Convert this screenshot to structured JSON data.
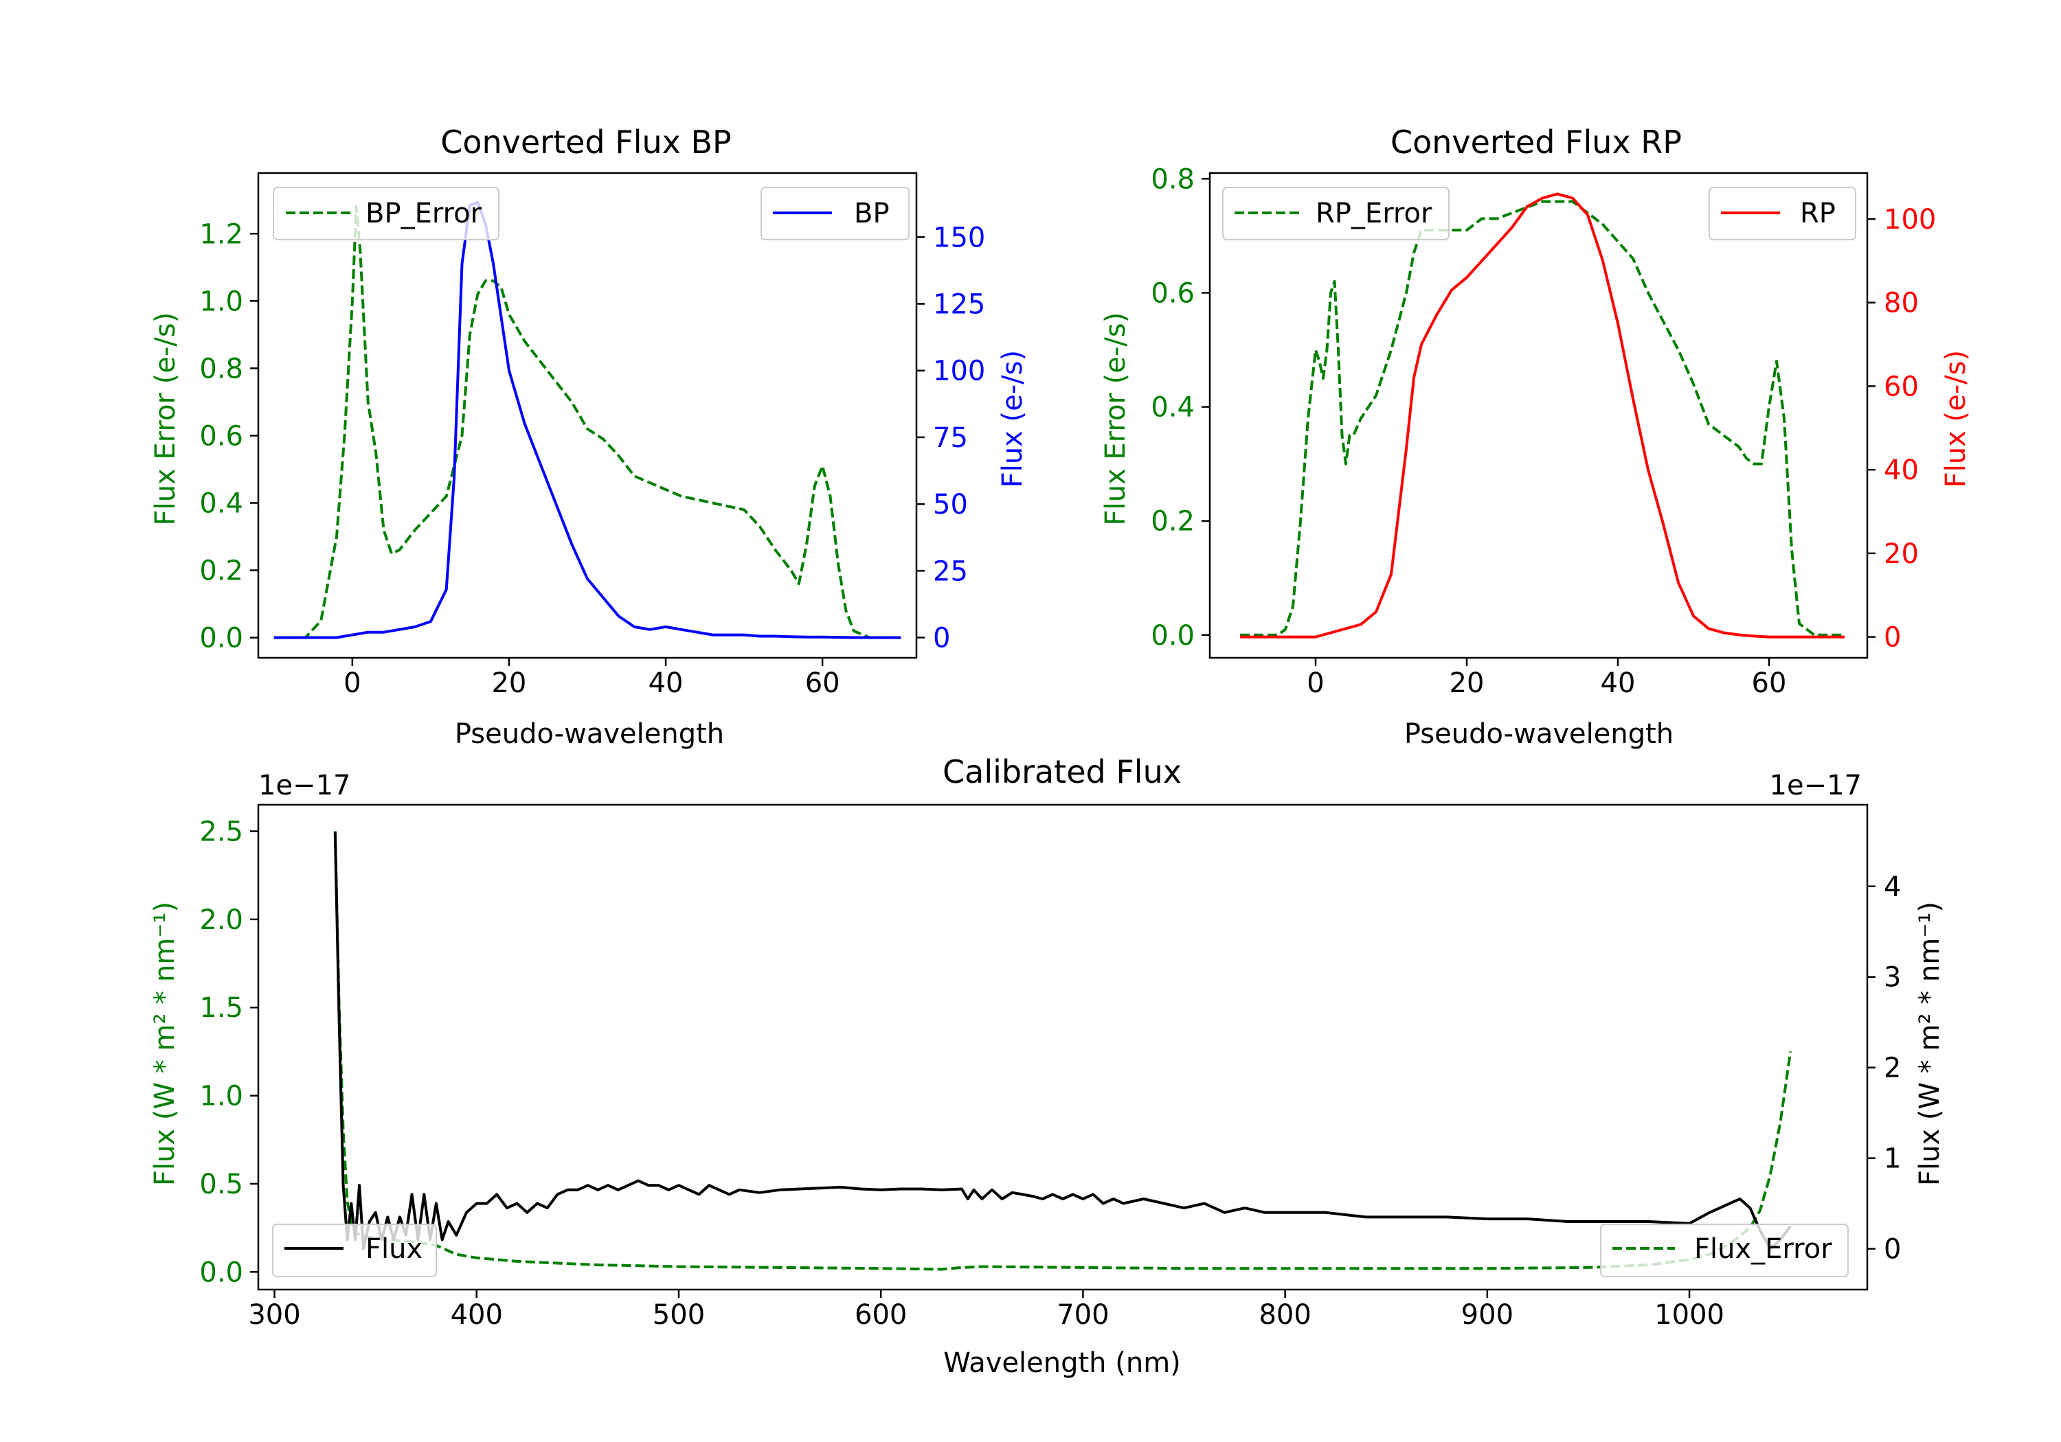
{
  "colors": {
    "green": "#008000",
    "blue": "#0000ff",
    "red": "#ff0000",
    "black": "#000000",
    "axis": "#000000"
  },
  "chart_data": [
    {
      "id": "bp",
      "type": "line",
      "title": "Converted Flux BP",
      "xlabel": "Pseudo-wavelength",
      "ylabel_left": "Flux Error (e-/s)",
      "ylabel_right": "Flux (e-/s)",
      "xlim": [
        -12,
        72
      ],
      "ylim_left": [
        -0.06,
        1.38
      ],
      "ylim_right": [
        -7.6,
        174
      ],
      "xticks": [
        0,
        20,
        40,
        60
      ],
      "yticks_left": [
        0.0,
        0.2,
        0.4,
        0.6,
        0.8,
        1.0,
        1.2
      ],
      "yticks_left_labels": [
        "0.0",
        "0.2",
        "0.4",
        "0.6",
        "0.8",
        "1.0",
        "1.2"
      ],
      "yticks_right": [
        0,
        25,
        50,
        75,
        100,
        125,
        150
      ],
      "yticks_right_labels": [
        "0",
        "25",
        "50",
        "75",
        "100",
        "125",
        "150"
      ],
      "legend_left": "BP_Error",
      "legend_right": "BP",
      "series": [
        {
          "name": "BP_Error",
          "axis": "left",
          "style": "dashed",
          "color": "#008000",
          "x": [
            -10,
            -6,
            -4,
            -2,
            -1,
            0,
            0.5,
            1,
            2,
            3,
            4,
            5,
            6,
            8,
            10,
            12,
            14,
            15,
            16,
            17,
            18,
            19,
            20,
            22,
            24,
            26,
            28,
            30,
            32,
            34,
            36,
            38,
            40,
            42,
            44,
            46,
            48,
            50,
            52,
            54,
            56,
            57,
            58,
            59,
            60,
            61,
            62,
            63,
            64,
            66,
            70
          ],
          "y": [
            0,
            0,
            0.05,
            0.3,
            0.6,
            1.0,
            1.28,
            1.15,
            0.7,
            0.55,
            0.32,
            0.25,
            0.26,
            0.32,
            0.37,
            0.42,
            0.6,
            0.9,
            1.02,
            1.06,
            1.06,
            1.04,
            0.96,
            0.88,
            0.82,
            0.76,
            0.7,
            0.62,
            0.59,
            0.54,
            0.48,
            0.46,
            0.44,
            0.42,
            0.41,
            0.4,
            0.39,
            0.38,
            0.33,
            0.26,
            0.2,
            0.16,
            0.28,
            0.45,
            0.51,
            0.42,
            0.22,
            0.08,
            0.02,
            0,
            0
          ]
        },
        {
          "name": "BP",
          "axis": "right",
          "style": "solid",
          "color": "#0000ff",
          "x": [
            -10,
            -2,
            0,
            2,
            4,
            6,
            8,
            10,
            12,
            13,
            14,
            15,
            16,
            17,
            18,
            19,
            20,
            22,
            24,
            26,
            28,
            30,
            32,
            34,
            36,
            38,
            40,
            42,
            44,
            46,
            48,
            50,
            52,
            54,
            56,
            58,
            60,
            62,
            64,
            66,
            70
          ],
          "y": [
            0,
            0,
            1,
            2,
            2,
            3,
            4,
            6,
            18,
            60,
            140,
            162,
            163,
            155,
            140,
            120,
            100,
            80,
            65,
            50,
            35,
            22,
            15,
            8,
            4,
            3,
            4,
            3,
            2,
            1,
            1,
            1,
            0.5,
            0.5,
            0.3,
            0.2,
            0.2,
            0.1,
            0,
            0,
            0
          ]
        }
      ]
    },
    {
      "id": "rp",
      "type": "line",
      "title": "Converted Flux RP",
      "xlabel": "Pseudo-wavelength",
      "ylabel_left": "Flux Error (e-/s)",
      "ylabel_right": "Flux (e-/s)",
      "xlim": [
        -14,
        73
      ],
      "ylim_left": [
        -0.04,
        0.81
      ],
      "ylim_right": [
        -5,
        111
      ],
      "xticks": [
        0,
        20,
        40,
        60
      ],
      "yticks_left": [
        0.0,
        0.2,
        0.4,
        0.6,
        0.8
      ],
      "yticks_left_labels": [
        "0.0",
        "0.2",
        "0.4",
        "0.6",
        "0.8"
      ],
      "yticks_right": [
        0,
        20,
        40,
        60,
        80,
        100
      ],
      "yticks_right_labels": [
        "0",
        "20",
        "40",
        "60",
        "80",
        "100"
      ],
      "legend_left": "RP_Error",
      "legend_right": "RP",
      "series": [
        {
          "name": "RP_Error",
          "axis": "left",
          "style": "dashed",
          "color": "#008000",
          "x": [
            -10,
            -5,
            -4,
            -3,
            -2,
            -1,
            0,
            0.5,
            1,
            1.5,
            2,
            2.5,
            3,
            3.5,
            4,
            4.5,
            5,
            6,
            7,
            8,
            10,
            12,
            13,
            14,
            16,
            18,
            20,
            22,
            24,
            26,
            28,
            30,
            32,
            34,
            36,
            38,
            40,
            42,
            44,
            46,
            48,
            50,
            52,
            54,
            55,
            56,
            57,
            58,
            59,
            60,
            61,
            62,
            63,
            64,
            66,
            70
          ],
          "y": [
            0,
            0,
            0.01,
            0.05,
            0.2,
            0.38,
            0.5,
            0.48,
            0.45,
            0.5,
            0.6,
            0.62,
            0.5,
            0.35,
            0.3,
            0.35,
            0.35,
            0.38,
            0.4,
            0.42,
            0.5,
            0.6,
            0.67,
            0.71,
            0.71,
            0.71,
            0.71,
            0.73,
            0.73,
            0.74,
            0.75,
            0.76,
            0.76,
            0.76,
            0.74,
            0.72,
            0.69,
            0.66,
            0.6,
            0.55,
            0.5,
            0.44,
            0.37,
            0.35,
            0.34,
            0.33,
            0.31,
            0.3,
            0.3,
            0.4,
            0.48,
            0.38,
            0.15,
            0.02,
            0,
            0
          ]
        },
        {
          "name": "RP",
          "axis": "right",
          "style": "solid",
          "color": "#ff0000",
          "x": [
            -10,
            -5,
            0,
            2,
            4,
            6,
            8,
            10,
            12,
            13,
            14,
            16,
            18,
            20,
            22,
            24,
            26,
            28,
            30,
            32,
            34,
            36,
            38,
            40,
            42,
            44,
            46,
            48,
            50,
            52,
            54,
            56,
            58,
            60,
            62,
            66,
            70
          ],
          "y": [
            0,
            0,
            0,
            1,
            2,
            3,
            6,
            15,
            45,
            62,
            70,
            77,
            83,
            86,
            90,
            94,
            98,
            103,
            105,
            106,
            105,
            101,
            90,
            75,
            57,
            40,
            27,
            13,
            5,
            2,
            1,
            0.5,
            0.2,
            0,
            0,
            0,
            0
          ]
        }
      ]
    },
    {
      "id": "calibrated",
      "type": "line",
      "title": "Calibrated Flux",
      "xlabel": "Wavelength (nm)",
      "ylabel_left": "Flux (W * m² * nm⁻¹)",
      "ylabel_right": "Flux (W * m² * nm⁻¹)",
      "scale_left": "1e−17",
      "scale_right": "1e−17",
      "xlim": [
        292,
        1088
      ],
      "ylim_left": [
        -0.1,
        2.65
      ],
      "ylim_right": [
        -0.45,
        4.9
      ],
      "xticks": [
        300,
        400,
        500,
        600,
        700,
        800,
        900,
        1000
      ],
      "yticks_left": [
        0.0,
        0.5,
        1.0,
        1.5,
        2.0,
        2.5
      ],
      "yticks_left_labels": [
        "0.0",
        "0.5",
        "1.0",
        "1.5",
        "2.0",
        "2.5"
      ],
      "yticks_right": [
        0,
        1,
        2,
        3,
        4
      ],
      "yticks_right_labels": [
        "0",
        "1",
        "2",
        "3",
        "4"
      ],
      "legend_left": "Flux",
      "legend_right": "Flux_Error",
      "series": [
        {
          "name": "Flux_Error",
          "axis": "left",
          "style": "dashed",
          "color": "#008000",
          "x": [
            330,
            332,
            334,
            336,
            338,
            340,
            345,
            350,
            360,
            370,
            380,
            390,
            400,
            420,
            440,
            460,
            480,
            500,
            550,
            600,
            630,
            640,
            650,
            700,
            750,
            800,
            850,
            900,
            950,
            980,
            1000,
            1010,
            1020,
            1030,
            1035,
            1040,
            1045,
            1050
          ],
          "y": [
            2.5,
            1.5,
            0.8,
            0.4,
            0.28,
            0.22,
            0.2,
            0.19,
            0.18,
            0.17,
            0.15,
            0.1,
            0.08,
            0.06,
            0.05,
            0.04,
            0.035,
            0.03,
            0.025,
            0.02,
            0.015,
            0.025,
            0.03,
            0.025,
            0.02,
            0.02,
            0.02,
            0.02,
            0.025,
            0.04,
            0.07,
            0.1,
            0.16,
            0.25,
            0.35,
            0.55,
            0.85,
            1.25
          ]
        },
        {
          "name": "Flux",
          "axis": "right",
          "style": "solid",
          "color": "#000000",
          "x": [
            330,
            332,
            334,
            336,
            338,
            340,
            342,
            344,
            347,
            350,
            353,
            356,
            359,
            362,
            365,
            368,
            371,
            374,
            377,
            380,
            383,
            386,
            390,
            395,
            400,
            405,
            410,
            415,
            420,
            425,
            430,
            435,
            440,
            445,
            450,
            455,
            460,
            465,
            470,
            475,
            480,
            485,
            490,
            495,
            500,
            505,
            510,
            515,
            520,
            525,
            530,
            540,
            550,
            560,
            570,
            580,
            590,
            600,
            610,
            620,
            630,
            640,
            643,
            646,
            650,
            655,
            660,
            665,
            670,
            675,
            680,
            685,
            690,
            695,
            700,
            705,
            710,
            715,
            720,
            730,
            740,
            750,
            760,
            770,
            780,
            790,
            800,
            820,
            840,
            860,
            880,
            900,
            920,
            940,
            960,
            980,
            1000,
            1010,
            1020,
            1025,
            1030,
            1035,
            1040,
            1045,
            1050
          ],
          "y": [
            4.6,
            2.5,
            0.7,
            0.1,
            0.5,
            0.1,
            0.7,
            0,
            0.3,
            0.4,
            0.1,
            0.35,
            0.1,
            0.35,
            0.15,
            0.6,
            0.1,
            0.6,
            0.1,
            0.5,
            0.1,
            0.3,
            0.15,
            0.4,
            0.5,
            0.5,
            0.6,
            0.45,
            0.5,
            0.4,
            0.5,
            0.45,
            0.6,
            0.65,
            0.65,
            0.7,
            0.65,
            0.7,
            0.65,
            0.7,
            0.75,
            0.7,
            0.7,
            0.65,
            0.7,
            0.65,
            0.6,
            0.7,
            0.65,
            0.6,
            0.65,
            0.62,
            0.65,
            0.66,
            0.67,
            0.68,
            0.66,
            0.65,
            0.66,
            0.66,
            0.65,
            0.66,
            0.55,
            0.65,
            0.55,
            0.65,
            0.55,
            0.62,
            0.6,
            0.58,
            0.55,
            0.6,
            0.55,
            0.6,
            0.55,
            0.6,
            0.5,
            0.55,
            0.5,
            0.55,
            0.5,
            0.45,
            0.5,
            0.4,
            0.45,
            0.4,
            0.4,
            0.4,
            0.35,
            0.35,
            0.35,
            0.33,
            0.33,
            0.3,
            0.3,
            0.3,
            0.28,
            0.4,
            0.5,
            0.55,
            0.45,
            0.2,
            0,
            0.1,
            0.25
          ]
        }
      ]
    }
  ]
}
